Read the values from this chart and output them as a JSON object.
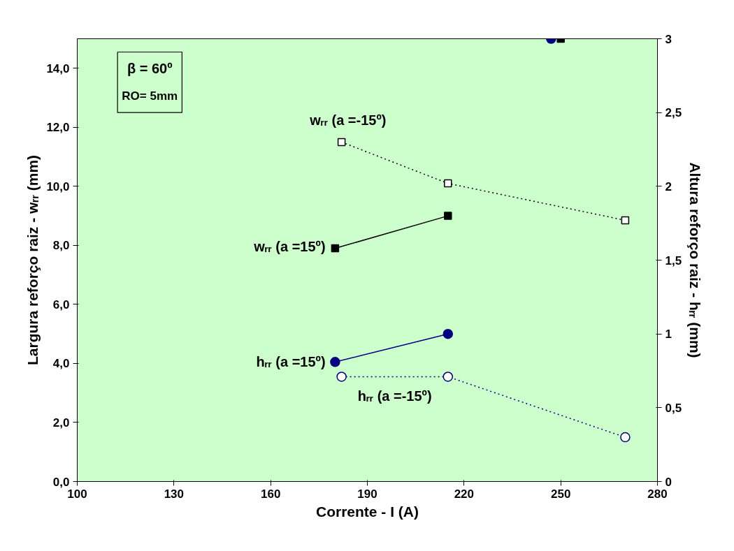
{
  "chart_data": {
    "type": "line",
    "xlabel": "Corrente - I (A)",
    "ylabel": "Largura reforço raiz - wᵣᵣ (mm)",
    "y2label": "Altura reforço raiz - hᵣᵣ (mm)",
    "xlim": [
      100,
      280
    ],
    "xticks": [
      100,
      130,
      160,
      190,
      220,
      250,
      280
    ],
    "ylim": [
      0,
      15
    ],
    "yticks": [
      {
        "value": 0,
        "label": "0,0"
      },
      {
        "value": 2,
        "label": "2,0"
      },
      {
        "value": 4,
        "label": "4,0"
      },
      {
        "value": 6,
        "label": "6,0"
      },
      {
        "value": 8,
        "label": "8,0"
      },
      {
        "value": 10,
        "label": "10,0"
      },
      {
        "value": 12,
        "label": "12,0"
      },
      {
        "value": 14,
        "label": "14,0"
      }
    ],
    "y2lim": [
      0,
      3
    ],
    "y2ticks": [
      0,
      {
        "value": 0.5,
        "label": "0,5"
      },
      1,
      {
        "value": 1.5,
        "label": "1,5"
      },
      2,
      {
        "value": 2.5,
        "label": "2,5"
      },
      3
    ],
    "grid": false,
    "annotations": [
      "β = 60º",
      "RO= 5mm"
    ],
    "series": [
      {
        "name": "wᵣᵣ (a =-15º)",
        "color": "#000000",
        "x": [
          182,
          215,
          270
        ],
        "values": [
          11.5,
          10.1,
          8.85
        ],
        "marker": "square",
        "line_style": "dotted"
      },
      {
        "name": "wᵣᵣ (a =15º)",
        "color": "#000000",
        "x": [
          180,
          215
        ],
        "values": [
          7.9,
          9.0
        ],
        "marker": "square",
        "line_style": "solid"
      },
      {
        "name": "hᵣᵣ (a =15º)",
        "color": "#000080",
        "x": [
          180,
          215
        ],
        "values": [
          0.81,
          1.0
        ],
        "marker": "circle",
        "line_style": "solid",
        "axis": "y2"
      },
      {
        "name": "hᵣᵣ (a =-15º)",
        "color": "#000080",
        "x": [
          182,
          215,
          270
        ],
        "values": [
          0.71,
          0.71,
          0.3
        ],
        "marker": "circle",
        "line_style": "dotted",
        "axis": "y2"
      },
      {
        "color": "#000080",
        "x": [
          247
        ],
        "values": [
          15
        ],
        "marker": "circle"
      },
      {
        "color": "#000000",
        "x": [
          250
        ],
        "values": [
          15
        ],
        "marker": "square"
      }
    ]
  }
}
